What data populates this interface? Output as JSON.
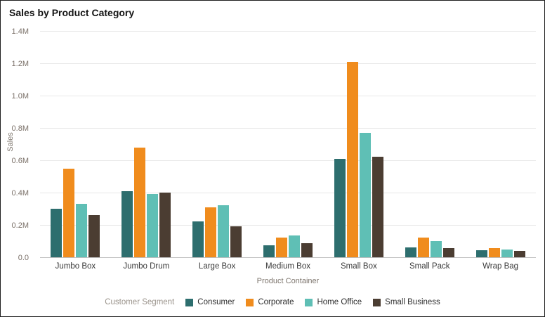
{
  "chart_data": {
    "type": "bar",
    "title": "Sales by Product Category",
    "xlabel": "Product Container",
    "ylabel": "Sales",
    "legend_title": "Customer Segment",
    "legend_position": "bottom",
    "grid": true,
    "ylim": [
      0,
      1.4
    ],
    "ytick_labels": [
      "0.0",
      "0.2M",
      "0.4M",
      "0.6M",
      "0.8M",
      "1.0M",
      "1.2M",
      "1.4M"
    ],
    "categories": [
      "Jumbo Box",
      "Jumbo Drum",
      "Large Box",
      "Medium Box",
      "Small Box",
      "Small Pack",
      "Wrap Bag"
    ],
    "series": [
      {
        "name": "Consumer",
        "color": "#2d6e6e",
        "values": [
          0.3,
          0.41,
          0.22,
          0.075,
          0.61,
          0.06,
          0.045
        ]
      },
      {
        "name": "Corporate",
        "color": "#f08c1d",
        "values": [
          0.55,
          0.68,
          0.31,
          0.12,
          1.21,
          0.12,
          0.055
        ]
      },
      {
        "name": "Home Office",
        "color": "#5fbfb5",
        "values": [
          0.33,
          0.39,
          0.32,
          0.135,
          0.77,
          0.1,
          0.05
        ]
      },
      {
        "name": "Small Business",
        "color": "#4b3d32",
        "values": [
          0.26,
          0.4,
          0.19,
          0.085,
          0.62,
          0.055,
          0.04
        ]
      }
    ],
    "value_unit": "M"
  }
}
